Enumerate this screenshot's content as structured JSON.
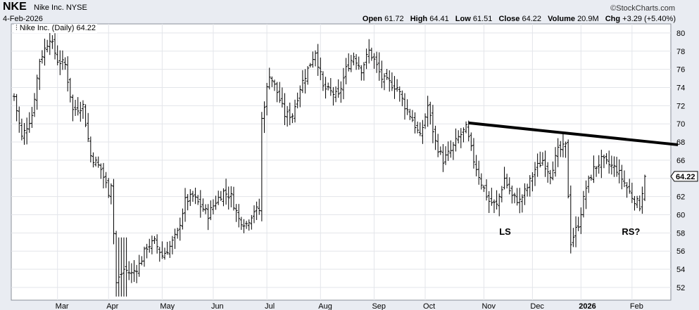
{
  "header": {
    "ticker": "NKE",
    "company": "Nike Inc. NYSE",
    "date": "4-Feb-2026",
    "credit": "©StockCharts.com",
    "open_label": "Open",
    "open": "61.72",
    "high_label": "High",
    "high": "64.41",
    "low_label": "Low",
    "low": "61.51",
    "close_label": "Close",
    "close": "64.22",
    "volume_label": "Volume",
    "volume": "20.9M",
    "chg_label": "Chg",
    "chg": "+3.29 (+5.40%)"
  },
  "legend": "Nike Inc. (Daily) 64.22",
  "chart_data": {
    "type": "ohlc",
    "series_name": "Nike Inc. (Daily)",
    "ylim": [
      50.6,
      81
    ],
    "y_ticks": [
      52,
      54,
      56,
      58,
      60,
      62,
      64,
      66,
      68,
      70,
      72,
      74,
      76,
      78,
      80
    ],
    "x_month_labels": [
      {
        "label": "Mar",
        "bar": 17
      },
      {
        "label": "Apr",
        "bar": 37
      },
      {
        "label": "May",
        "bar": 58
      },
      {
        "label": "Jun",
        "bar": 78
      },
      {
        "label": "Jul",
        "bar": 99
      },
      {
        "label": "Aug",
        "bar": 120
      },
      {
        "label": "Sep",
        "bar": 141
      },
      {
        "label": "Oct",
        "bar": 161
      },
      {
        "label": "Nov",
        "bar": 184
      },
      {
        "label": "Dec",
        "bar": 203
      },
      {
        "label": "2026",
        "bar": 222
      },
      {
        "label": "Feb",
        "bar": 242
      }
    ],
    "last_price": "64.22",
    "close_path": [
      [
        0,
        73.0
      ],
      [
        3,
        68.5
      ],
      [
        7,
        71.0
      ],
      [
        10,
        77.0
      ],
      [
        14,
        79.5
      ],
      [
        17,
        77.0
      ],
      [
        20,
        76.5
      ],
      [
        23,
        71.5
      ],
      [
        27,
        72.0
      ],
      [
        30,
        66.5
      ],
      [
        34,
        65.0
      ],
      [
        37,
        62.5
      ],
      [
        38,
        63.5
      ],
      [
        40,
        52.5
      ],
      [
        43,
        54.0
      ],
      [
        46,
        53.5
      ],
      [
        49,
        54.5
      ],
      [
        52,
        56.5
      ],
      [
        55,
        57.0
      ],
      [
        58,
        55.5
      ],
      [
        61,
        56.5
      ],
      [
        64,
        58.0
      ],
      [
        67,
        61.5
      ],
      [
        70,
        62.0
      ],
      [
        73,
        61.0
      ],
      [
        76,
        60.0
      ],
      [
        79,
        61.5
      ],
      [
        82,
        62.5
      ],
      [
        85,
        62.0
      ],
      [
        88,
        59.5
      ],
      [
        91,
        59.0
      ],
      [
        94,
        60.5
      ],
      [
        96,
        60.5
      ],
      [
        97,
        70.5
      ],
      [
        100,
        75.5
      ],
      [
        103,
        73.5
      ],
      [
        106,
        71.0
      ],
      [
        109,
        71.0
      ],
      [
        112,
        74.0
      ],
      [
        115,
        76.0
      ],
      [
        118,
        78.0
      ],
      [
        121,
        74.0
      ],
      [
        124,
        73.5
      ],
      [
        127,
        73.0
      ],
      [
        130,
        76.0
      ],
      [
        133,
        77.5
      ],
      [
        136,
        76.0
      ],
      [
        139,
        78.0
      ],
      [
        141,
        77.0
      ],
      [
        144,
        75.0
      ],
      [
        147,
        74.5
      ],
      [
        150,
        74.0
      ],
      [
        153,
        72.0
      ],
      [
        156,
        70.5
      ],
      [
        159,
        68.5
      ],
      [
        162,
        72.0
      ],
      [
        165,
        68.0
      ],
      [
        168,
        66.0
      ],
      [
        171,
        67.0
      ],
      [
        174,
        68.5
      ],
      [
        177,
        69.5
      ],
      [
        180,
        66.0
      ],
      [
        183,
        63.5
      ],
      [
        186,
        61.5
      ],
      [
        189,
        61.0
      ],
      [
        192,
        64.0
      ],
      [
        195,
        62.0
      ],
      [
        198,
        61.5
      ],
      [
        201,
        63.0
      ],
      [
        204,
        65.0
      ],
      [
        207,
        66.0
      ],
      [
        210,
        64.5
      ],
      [
        213,
        67.0
      ],
      [
        216,
        67.5
      ],
      [
        218,
        57.0
      ],
      [
        221,
        59.0
      ],
      [
        224,
        63.0
      ],
      [
        227,
        65.0
      ],
      [
        230,
        66.0
      ],
      [
        233,
        65.5
      ],
      [
        236,
        65.0
      ],
      [
        239,
        63.5
      ],
      [
        242,
        62.0
      ],
      [
        245,
        61.0
      ],
      [
        247,
        64.2
      ]
    ],
    "trendline": {
      "start": [
        178,
        70.1
      ],
      "end": [
        260,
        67.7
      ],
      "color": "#000000"
    },
    "annotations": [
      {
        "text": "LS",
        "bar": 190,
        "y": 57.8
      },
      {
        "text": "RS?",
        "bar": 238,
        "y": 57.8
      }
    ],
    "grid": true,
    "bar_color": "#000000"
  }
}
